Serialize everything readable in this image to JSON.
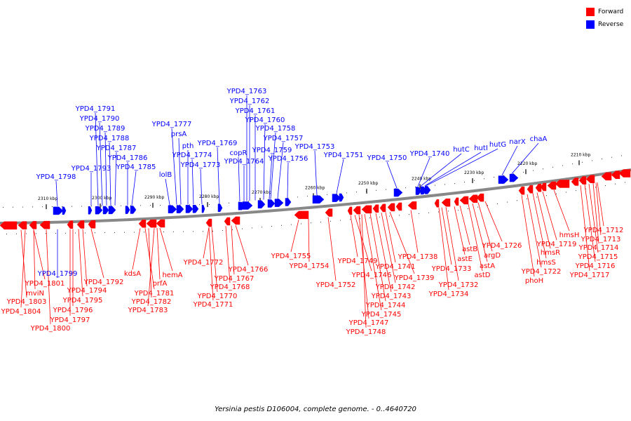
{
  "legend": {
    "items": [
      {
        "label": "Forward",
        "color": "#ff0000"
      },
      {
        "label": "Reverse",
        "color": "#0000ff"
      }
    ]
  },
  "caption": "Yersinia pestis D106004, complete genome. - 0..4640720",
  "colors": {
    "forward": "#ff0000",
    "reverse": "#0000ff",
    "backbone": "#888888"
  },
  "scale_ticks": [
    "2310 kbp",
    "2300 kbp",
    "2290 kbp",
    "2280 kbp",
    "2270 kbp",
    "2260 kbp",
    "2250 kbp",
    "2240 kbp",
    "2230 kbp",
    "2220 kbp",
    "2210 kbp"
  ],
  "genes_reverse": [
    "YPD4_1798",
    "YPD4_1793",
    "YPD4_1791",
    "YPD4_1790",
    "YPD4_1789",
    "YPD4_1788",
    "YPD4_1787",
    "YPD4_1786",
    "YPD4_1785",
    "lolB",
    "YPD4_1777",
    "prsA",
    "pth",
    "YPD4_1774",
    "YPD4_1773",
    "YPD4_1769",
    "copR",
    "YPD4_1764",
    "YPD4_1763",
    "YPD4_1762",
    "YPD4_1761",
    "YPD4_1760",
    "YPD4_1758",
    "YPD4_1759",
    "YPD4_1757",
    "YPD4_1756",
    "YPD4_1753",
    "YPD4_1751",
    "YPD4_1750",
    "YPD4_1740",
    "hutC",
    "hutI",
    "hutG",
    "narX",
    "chaA",
    "YPD4_1799"
  ],
  "genes_forward": [
    "YPD4_1801",
    "YPD4_1803",
    "mviN",
    "YPD4_1804",
    "YPD4_1800",
    "YPD4_1797",
    "YPD4_1796",
    "YPD4_1795",
    "YPD4_1794",
    "YPD4_1792",
    "kdsA",
    "YPD4_1781",
    "YPD4_1782",
    "YPD4_1783",
    "prfA",
    "hemA",
    "YPD4_1772",
    "YPD4_1770",
    "YPD4_1771",
    "YPD4_1768",
    "YPD4_1767",
    "YPD4_1766",
    "YPD4_1755",
    "YPD4_1754",
    "YPD4_1752",
    "YPD4_1749",
    "YPD4_1746",
    "YPD4_1747",
    "YPD4_1748",
    "YPD4_1745",
    "YPD4_1744",
    "YPD4_1743",
    "YPD4_1742",
    "YPD4_1741",
    "YPD4_1739",
    "YPD4_1738",
    "YPD4_1734",
    "YPD4_1733",
    "YPD4_1732",
    "astE",
    "astB",
    "astD",
    "astA",
    "argD",
    "YPD4_1726",
    "phoH",
    "YPD4_1722",
    "hmsS",
    "hmsR",
    "YPD4_1719",
    "hmsH",
    "YPD4_1717",
    "YPD4_1716",
    "YPD4_1715",
    "YPD4_1714",
    "YPD4_1713",
    "YPD4_1712"
  ]
}
